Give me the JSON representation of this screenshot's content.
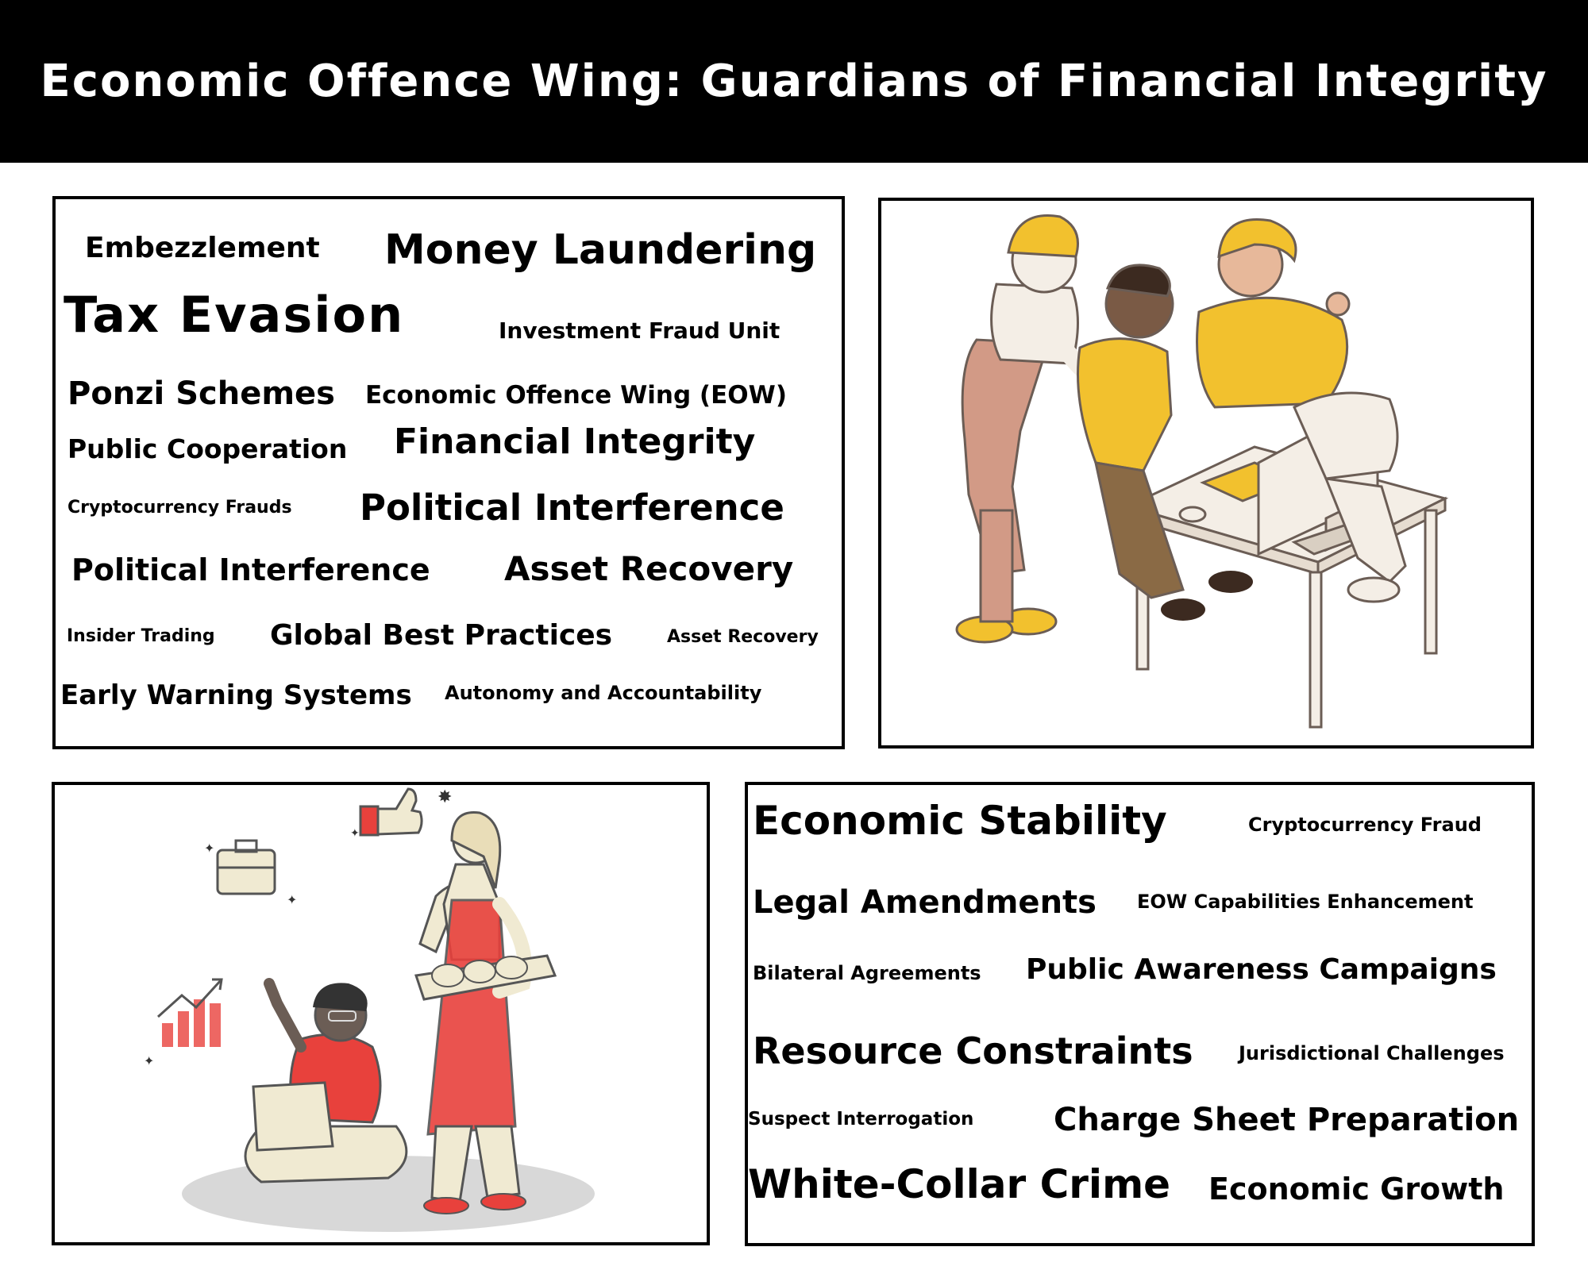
{
  "header": {
    "title": "Economic Offence Wing: Guardians of Financial Integrity"
  },
  "word_cloud_left": {
    "words": [
      "Embezzlement",
      "Money Laundering",
      "Tax Evasion",
      "Investment Fraud Unit",
      "Ponzi Schemes",
      "Economic Offence Wing (EOW)",
      "Public Cooperation",
      "Financial Integrity",
      "Cryptocurrency Frauds",
      "Political Interference",
      "Political Interference",
      "Asset Recovery",
      "Insider Trading",
      "Global Best Practices",
      "Asset Recovery",
      "Early Warning Systems",
      "Autonomy and Accountability"
    ]
  },
  "word_cloud_right": {
    "words": [
      "Economic Stability",
      "Cryptocurrency Fraud",
      "Legal Amendments",
      "EOW Capabilities Enhancement",
      "Bilateral Agreements",
      "Public Awareness Campaigns",
      "Resource Constraints",
      "Jurisdictional Challenges",
      "Suspect Interrogation",
      "Charge Sheet Preparation",
      "White-Collar Crime",
      "Economic Growth"
    ]
  },
  "colors": {
    "background": "#ffffff",
    "header_bg": "#000000",
    "header_text": "#ffffff",
    "accent_yellow": "#f2c12e",
    "accent_red": "#e8413c",
    "cream": "#f0ead2",
    "skin_dark": "#6b5d55",
    "overalls": "#d29a86"
  },
  "illustrations": {
    "top_right": "team-at-computer-illustration",
    "bottom_left": "bakery-worker-and-laptop-user-illustration"
  }
}
